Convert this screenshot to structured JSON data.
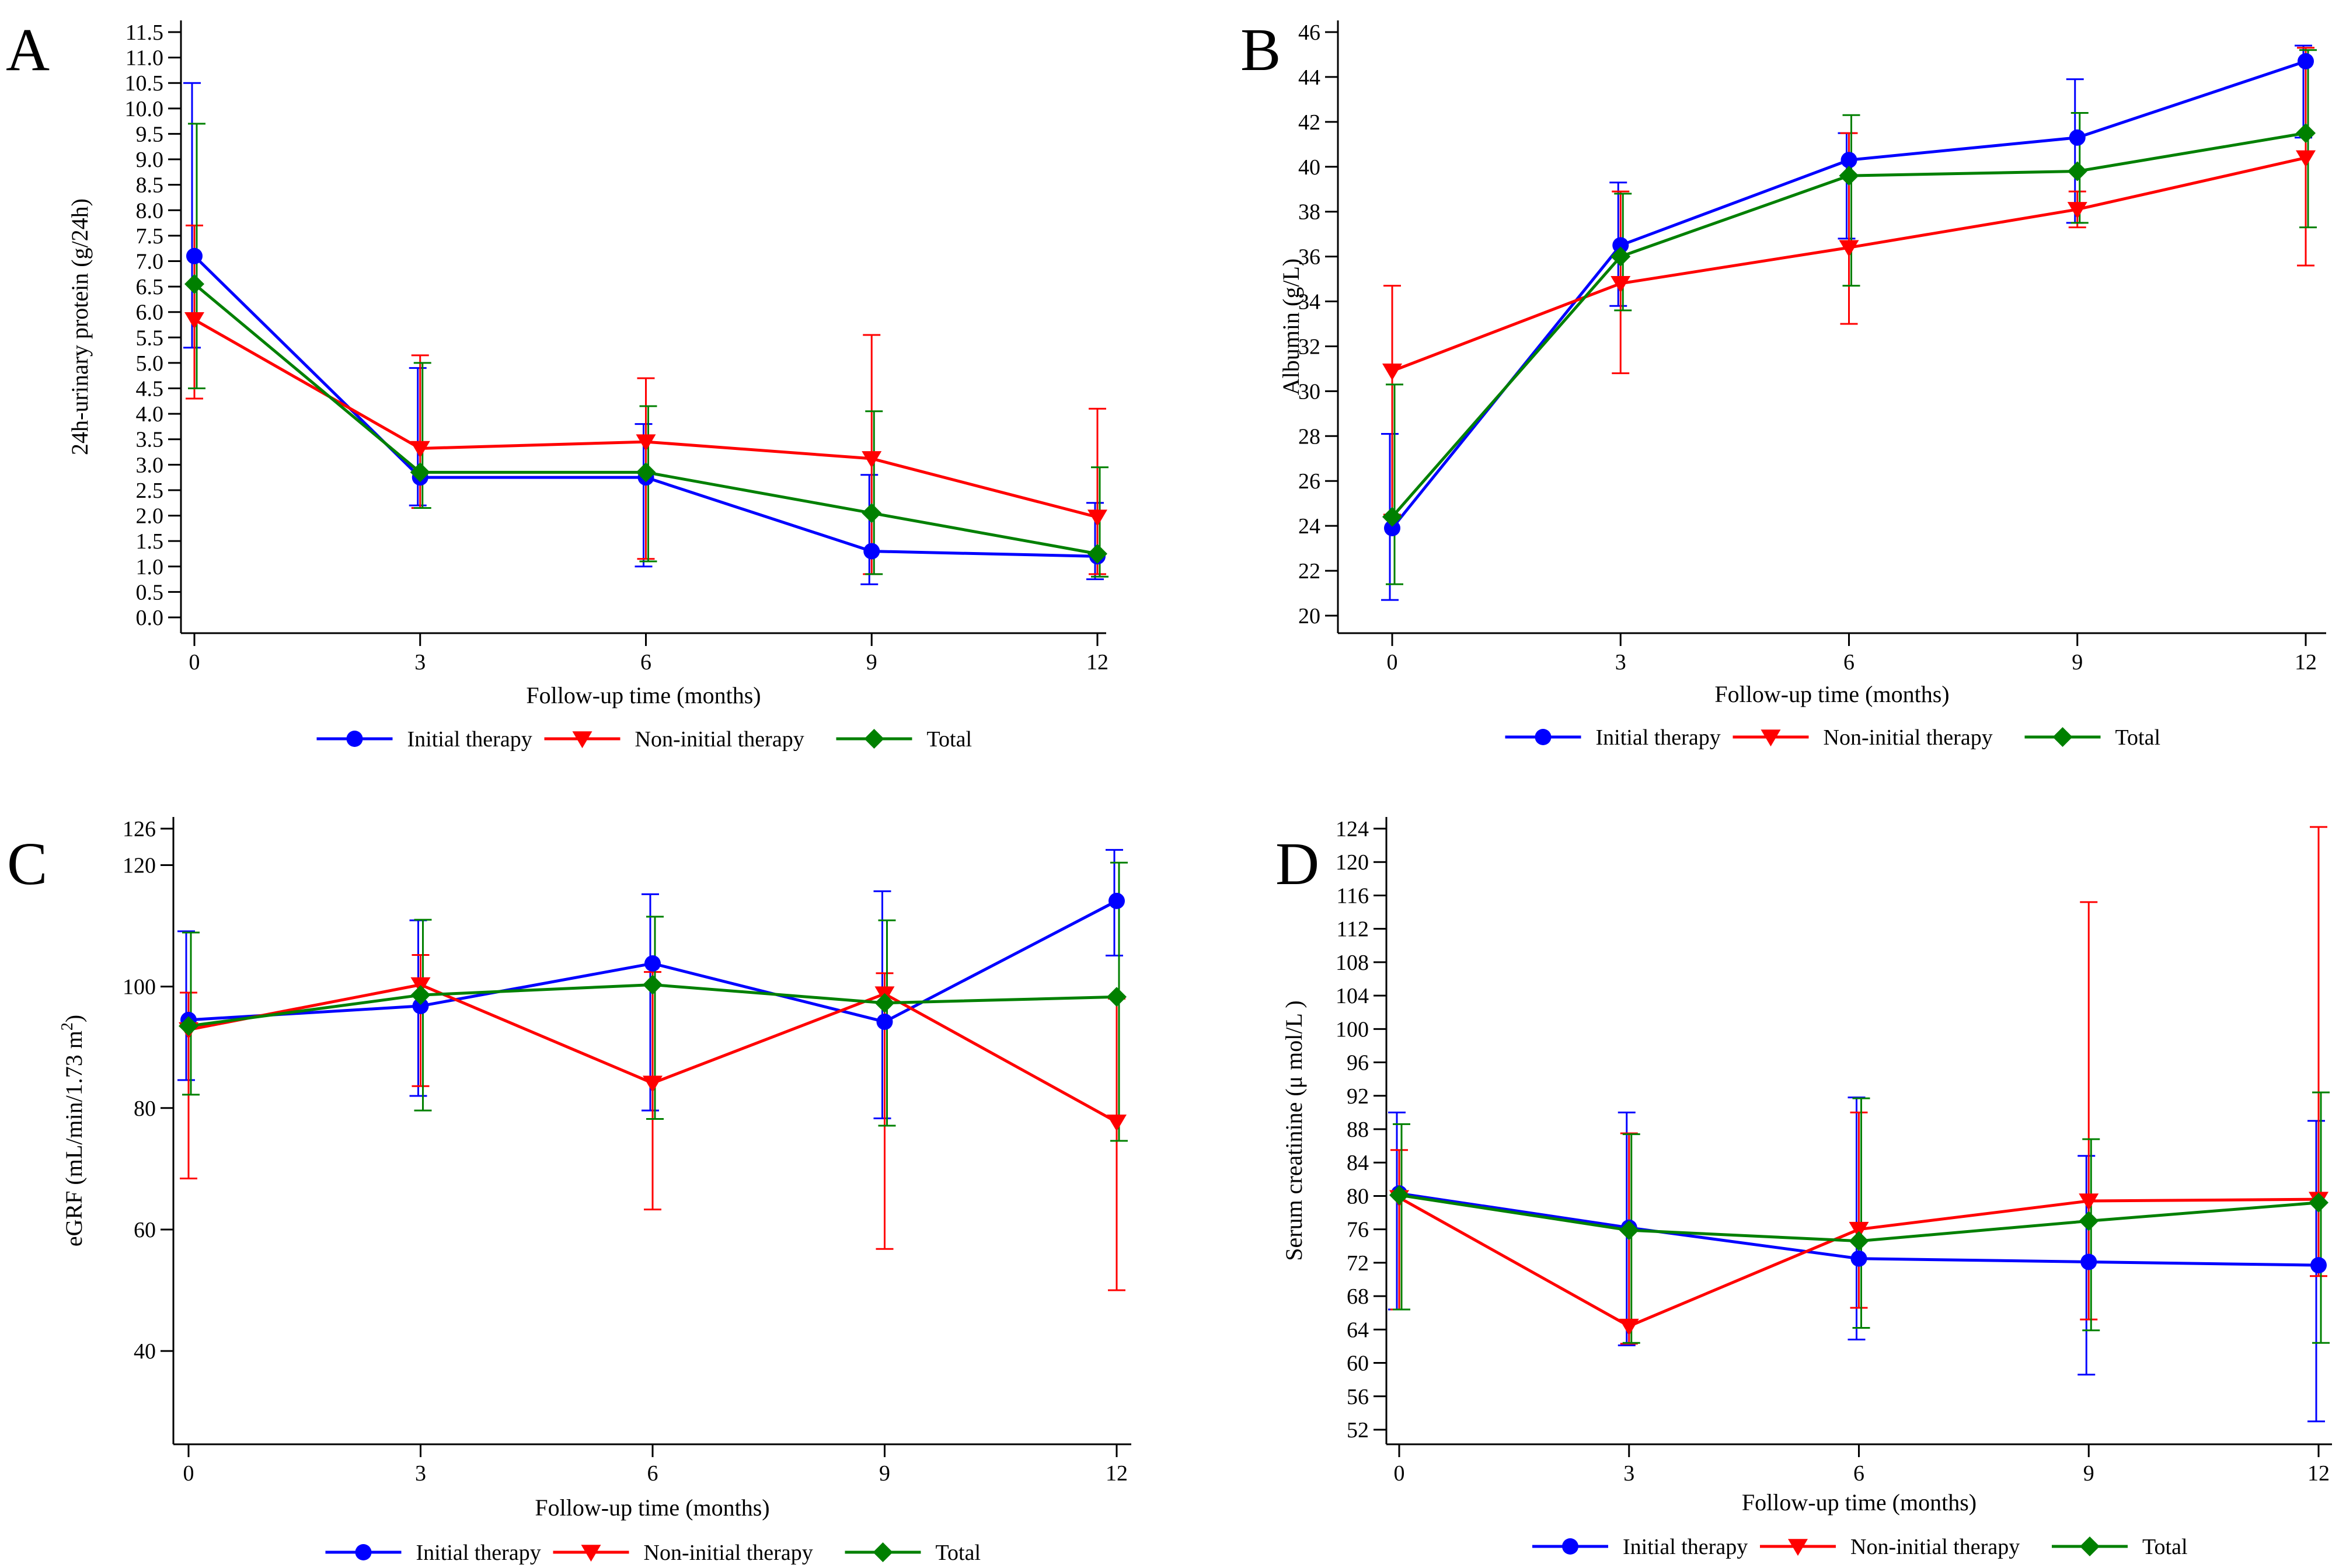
{
  "figure": {
    "colors": {
      "initial": "#0000ff",
      "noninitial": "#ff0000",
      "total": "#008000"
    }
  },
  "chart_data": [
    {
      "panel": "A",
      "type": "line",
      "xlabel": "Follow-up time (months)",
      "ylabel": "24h-urinary protein (g/24h)",
      "x": [
        0,
        3,
        6,
        9,
        12
      ],
      "xlim": [
        0,
        12
      ],
      "ylim": [
        0,
        11.5
      ],
      "yticks": [
        "0.0",
        "0.5",
        "1.0",
        "1.5",
        "2.0",
        "2.5",
        "3.0",
        "3.5",
        "4.0",
        "4.5",
        "5.0",
        "5.5",
        "6.0",
        "6.5",
        "7.0",
        "7.5",
        "8.0",
        "8.5",
        "9.0",
        "9.5",
        "10.0",
        "10.5",
        "11.0",
        "11.5"
      ],
      "legend": [
        "Initial therapy",
        "Non-initial therapy",
        "Total"
      ],
      "legend_position": "bottom",
      "series": [
        {
          "name": "Initial therapy",
          "color": "#0000ff",
          "marker": "circle",
          "values": [
            7.1,
            2.75,
            2.75,
            1.3,
            1.2
          ],
          "lower": [
            5.3,
            2.2,
            1.0,
            0.65,
            0.75
          ],
          "upper": [
            10.5,
            4.9,
            3.8,
            2.8,
            2.25
          ]
        },
        {
          "name": "Non-initial therapy",
          "color": "#ff0000",
          "marker": "triangle-down",
          "values": [
            5.85,
            3.32,
            3.45,
            3.12,
            1.97
          ],
          "lower": [
            4.3,
            2.15,
            1.15,
            0.85,
            0.85
          ],
          "upper": [
            7.7,
            5.15,
            4.7,
            5.55,
            4.1
          ]
        },
        {
          "name": "Total",
          "color": "#008000",
          "marker": "diamond",
          "values": [
            6.55,
            2.85,
            2.85,
            2.05,
            1.25
          ],
          "lower": [
            4.5,
            2.15,
            1.1,
            0.85,
            0.8
          ],
          "upper": [
            9.7,
            5.0,
            4.15,
            4.05,
            2.95
          ]
        }
      ]
    },
    {
      "panel": "B",
      "type": "line",
      "xlabel": "Follow-up time (months)",
      "ylabel": "Albumin (g/L)",
      "x": [
        0,
        3,
        6,
        9,
        12
      ],
      "xlim": [
        0,
        12
      ],
      "ylim": [
        20,
        46
      ],
      "yticks": [
        "20",
        "22",
        "24",
        "26",
        "28",
        "30",
        "32",
        "34",
        "36",
        "38",
        "40",
        "42",
        "44",
        "46"
      ],
      "legend": [
        "Initial therapy",
        "Non-initial therapy",
        "Total"
      ],
      "legend_position": "bottom",
      "series": [
        {
          "name": "Initial therapy",
          "color": "#0000ff",
          "marker": "circle",
          "values": [
            23.9,
            36.5,
            40.3,
            41.3,
            44.7
          ],
          "lower": [
            20.7,
            33.8,
            36.8,
            37.5,
            41.3
          ],
          "upper": [
            28.1,
            39.3,
            41.5,
            43.9,
            45.4
          ]
        },
        {
          "name": "Non-initial therapy",
          "color": "#ff0000",
          "marker": "triangle-down",
          "values": [
            30.9,
            34.8,
            36.4,
            38.1,
            40.4
          ],
          "lower": [
            24.5,
            30.8,
            33.0,
            37.3,
            35.6
          ],
          "upper": [
            34.7,
            38.9,
            41.5,
            38.9,
            45.3
          ]
        },
        {
          "name": "Total",
          "color": "#008000",
          "marker": "diamond",
          "values": [
            24.4,
            36.0,
            39.6,
            39.8,
            41.5
          ],
          "lower": [
            21.4,
            33.6,
            34.7,
            37.5,
            37.3
          ],
          "upper": [
            30.3,
            38.8,
            42.3,
            42.4,
            45.2
          ]
        }
      ]
    },
    {
      "panel": "C",
      "type": "line",
      "xlabel": "Follow-up time (months)",
      "ylabel": "eGRF (mL/min/1.73 m",
      "ylabel_sup": "2",
      "ylabel_end": ")",
      "x": [
        0,
        3,
        6,
        9,
        12
      ],
      "xlim": [
        0,
        12
      ],
      "ylim": [
        28,
        126
      ],
      "ytick_values": [
        40,
        60,
        80,
        100,
        120,
        126
      ],
      "yticks": [
        "40",
        "60",
        "80",
        "100",
        "120",
        "126"
      ],
      "legend": [
        "Initial therapy",
        "Non-initial therapy",
        "Total"
      ],
      "legend_position": "bottom",
      "series": [
        {
          "name": "Initial therapy",
          "color": "#0000ff",
          "marker": "circle",
          "values": [
            94.5,
            96.8,
            103.8,
            94.2,
            114.1
          ],
          "lower": [
            84.6,
            82.0,
            79.6,
            78.3,
            105.1
          ],
          "upper": [
            109.1,
            110.9,
            115.2,
            115.7,
            122.5
          ]
        },
        {
          "name": "Non-initial therapy",
          "color": "#ff0000",
          "marker": "triangle-down",
          "values": [
            92.9,
            100.3,
            84.1,
            98.8,
            77.7
          ],
          "lower": [
            68.4,
            83.6,
            63.3,
            56.8,
            50.0
          ],
          "upper": [
            99.0,
            105.2,
            102.4,
            102.2,
            98.0
          ]
        },
        {
          "name": "Total",
          "color": "#008000",
          "marker": "diamond",
          "values": [
            93.5,
            98.6,
            100.3,
            97.3,
            98.3
          ],
          "lower": [
            82.2,
            79.6,
            78.2,
            77.1,
            74.6
          ],
          "upper": [
            108.9,
            111.0,
            111.5,
            110.9,
            120.4
          ]
        }
      ]
    },
    {
      "panel": "D",
      "type": "line",
      "xlabel": "Follow-up time (months)",
      "ylabel": "Serum creatinine (μ mol/L )",
      "x": [
        0,
        3,
        6,
        9,
        12
      ],
      "xlim": [
        0,
        12
      ],
      "ylim": [
        50,
        126
      ],
      "yticks": [
        "52",
        "56",
        "60",
        "64",
        "68",
        "72",
        "76",
        "80",
        "84",
        "88",
        "92",
        "96",
        "100",
        "104",
        "108",
        "112",
        "116",
        "120",
        "124"
      ],
      "legend": [
        "Initial therapy",
        "Non-initial therapy",
        "Total"
      ],
      "legend_position": "bottom",
      "series": [
        {
          "name": "Initial therapy",
          "color": "#0000ff",
          "marker": "circle",
          "values": [
            80.3,
            76.2,
            72.5,
            72.1,
            71.7
          ],
          "lower": [
            66.4,
            62.1,
            62.8,
            58.6,
            53.0
          ],
          "upper": [
            90.0,
            90.0,
            91.8,
            84.8,
            89.0
          ]
        },
        {
          "name": "Non-initial therapy",
          "color": "#ff0000",
          "marker": "triangle-down",
          "values": [
            79.8,
            64.4,
            76.0,
            79.4,
            79.6
          ],
          "lower": [
            66.4,
            62.3,
            66.6,
            65.2,
            70.4
          ],
          "upper": [
            85.5,
            87.5,
            90.0,
            115.2,
            124.2
          ]
        },
        {
          "name": "Total",
          "color": "#008000",
          "marker": "diamond",
          "values": [
            80.1,
            75.9,
            74.6,
            77.0,
            79.2
          ],
          "lower": [
            66.4,
            62.4,
            64.2,
            63.9,
            62.4
          ],
          "upper": [
            88.6,
            87.4,
            91.7,
            86.8,
            92.4
          ]
        }
      ]
    }
  ]
}
